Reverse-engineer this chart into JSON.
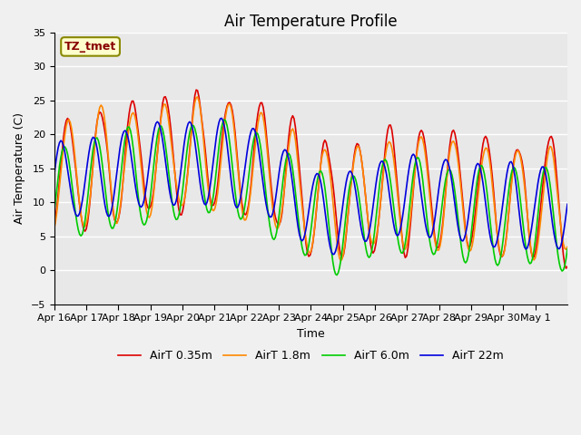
{
  "title": "Air Temperature Profile",
  "xlabel": "Time",
  "ylabel": "Air Temperature (C)",
  "ylim": [
    -5,
    35
  ],
  "yticks": [
    -5,
    0,
    5,
    10,
    15,
    20,
    25,
    30,
    35
  ],
  "xtick_labels": [
    "Apr 16",
    "Apr 17",
    "Apr 18",
    "Apr 19",
    "Apr 20",
    "Apr 21",
    "Apr 22",
    "Apr 23",
    "Apr 24",
    "Apr 25",
    "Apr 26",
    "Apr 27",
    "Apr 28",
    "Apr 29",
    "Apr 30",
    "May 1"
  ],
  "series_colors": [
    "#dd0000",
    "#ff8800",
    "#00cc00",
    "#0000dd"
  ],
  "series_labels": [
    "AirT 0.35m",
    "AirT 1.8m",
    "AirT 6.0m",
    "AirT 22m"
  ],
  "annotation_text": "TZ_tmet",
  "annotation_box_facecolor": "#ffffcc",
  "annotation_text_color": "#880000",
  "annotation_edge_color": "#888800",
  "fig_bg_color": "#f0f0f0",
  "plot_bg_color": "#e8e8e8",
  "grid_color": "#ffffff",
  "title_fontsize": 12,
  "axis_fontsize": 9,
  "tick_fontsize": 8
}
